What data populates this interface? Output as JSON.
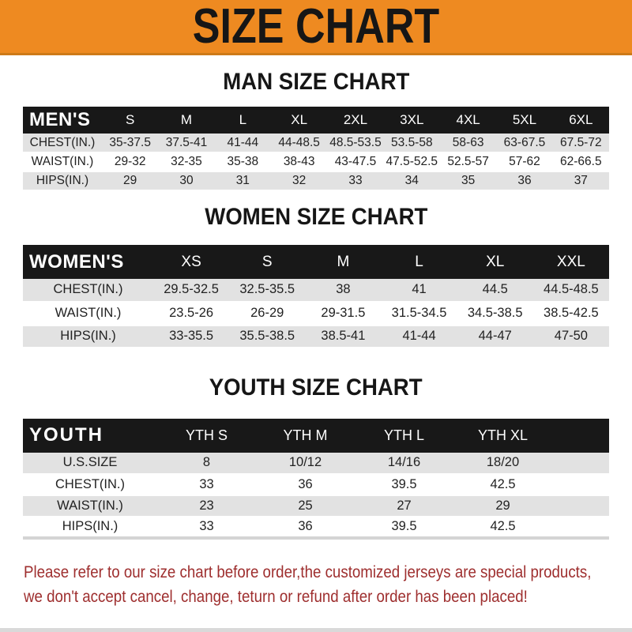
{
  "banner": {
    "title": "SIZE CHART"
  },
  "sections": [
    {
      "heading": "MAN SIZE CHART",
      "label": "MEN'S",
      "columns": [
        "S",
        "M",
        "L",
        "XL",
        "2XL",
        "3XL",
        "4XL",
        "5XL",
        "6XL"
      ],
      "rows": [
        {
          "label": "CHEST(IN.)",
          "values": [
            "35-37.5",
            "37.5-41",
            "41-44",
            "44-48.5",
            "48.5-53.5",
            "53.5-58",
            "58-63",
            "63-67.5",
            "67.5-72"
          ]
        },
        {
          "label": "WAIST(IN.)",
          "values": [
            "29-32",
            "32-35",
            "35-38",
            "38-43",
            "43-47.5",
            "47.5-52.5",
            "52.5-57",
            "57-62",
            "62-66.5"
          ]
        },
        {
          "label": "HIPS(IN.)",
          "values": [
            "29",
            "30",
            "31",
            "32",
            "33",
            "34",
            "35",
            "36",
            "37"
          ]
        }
      ]
    },
    {
      "heading": "WOMEN SIZE CHART",
      "label": "WOMEN'S",
      "columns": [
        "XS",
        "S",
        "M",
        "L",
        "XL",
        "XXL"
      ],
      "rows": [
        {
          "label": "CHEST(IN.)",
          "values": [
            "29.5-32.5",
            "32.5-35.5",
            "38",
            "41",
            "44.5",
            "44.5-48.5"
          ]
        },
        {
          "label": "WAIST(IN.)",
          "values": [
            "23.5-26",
            "26-29",
            "29-31.5",
            "31.5-34.5",
            "34.5-38.5",
            "38.5-42.5"
          ]
        },
        {
          "label": "HIPS(IN.)",
          "values": [
            "33-35.5",
            "35.5-38.5",
            "38.5-41",
            "41-44",
            "44-47",
            "47-50"
          ]
        }
      ]
    },
    {
      "heading": "YOUTH SIZE CHART",
      "label": "YOUTH",
      "columns": [
        "YTH S",
        "YTH M",
        "YTH L",
        "YTH XL"
      ],
      "rows": [
        {
          "label": "U.S.SIZE",
          "values": [
            "8",
            "10/12",
            "14/16",
            "18/20"
          ]
        },
        {
          "label": "CHEST(IN.)",
          "values": [
            "33",
            "36",
            "39.5",
            "42.5"
          ]
        },
        {
          "label": "WAIST(IN.)",
          "values": [
            "23",
            "25",
            "27",
            "29"
          ]
        },
        {
          "label": "HIPS(IN.)",
          "values": [
            "33",
            "36",
            "39.5",
            "42.5"
          ]
        }
      ]
    }
  ],
  "footer": {
    "line1": "Please refer to our size chart before order,the customized jerseys are special products,",
    "line2": "we don't accept cancel, change, teturn or refund after order has been placed!"
  },
  "colors": {
    "banner_bg": "#ee8a21",
    "banner_edge": "#cd7a18",
    "header_bg": "#181818",
    "row_gray": "#e2e2e2",
    "footer_red": "#9e2e2e"
  }
}
